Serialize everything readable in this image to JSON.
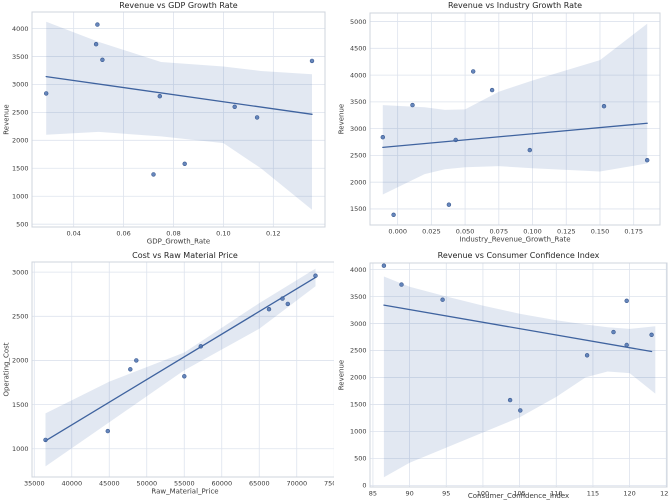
{
  "figure": {
    "background": "#ffffff",
    "colors": {
      "accent": "#4c72b0",
      "line": "#3f639f",
      "point_fill": "#4c72b0",
      "point_edge": "#39588f",
      "band_fill": "#4c72b0",
      "band_opacity": 0.16,
      "grid": "#dde3ed",
      "spine": "#cfd4dd",
      "tick_text": "#3b3b3b",
      "title_text": "#262626"
    }
  },
  "chart_data": [
    {
      "type": "scatter",
      "title": "Revenue vs GDP Growth Rate",
      "xlabel": "GDP_Growth_Rate",
      "ylabel": "Revenue",
      "legend": "none",
      "grid": true,
      "xlim": [
        0.0233,
        0.1407
      ],
      "ylim": [
        450,
        4295
      ],
      "xtick_values": [
        0.04,
        0.06,
        0.08,
        0.1,
        0.12
      ],
      "xtick_labels": [
        "0.04",
        "0.06",
        "0.08",
        "0.10",
        "0.12"
      ],
      "ytick_values": [
        500,
        1000,
        1500,
        2000,
        2500,
        3000,
        3500,
        4000
      ],
      "ytick_labels": [
        "500",
        "1000",
        "1500",
        "2000",
        "2500",
        "3000",
        "3500",
        "4000"
      ],
      "points": [
        [
          0.029,
          2840
        ],
        [
          0.0495,
          4070
        ],
        [
          0.049,
          3720
        ],
        [
          0.0515,
          3440
        ],
        [
          0.072,
          1390
        ],
        [
          0.0745,
          2790
        ],
        [
          0.0845,
          1580
        ],
        [
          0.1045,
          2600
        ],
        [
          0.1135,
          2410
        ],
        [
          0.1355,
          3420
        ]
      ],
      "regression_line": {
        "x": [
          0.029,
          0.1355
        ],
        "y": [
          3140,
          2465
        ]
      },
      "confidence_band": {
        "x": [
          0.029,
          0.05,
          0.075,
          0.1,
          0.115,
          0.1355
        ],
        "upper": [
          4120,
          3760,
          3400,
          3320,
          3240,
          3180
        ],
        "lower": [
          2100,
          2150,
          2070,
          1950,
          1500,
          760
        ]
      }
    },
    {
      "type": "scatter",
      "title": "Revenue vs Industry Growth Rate",
      "xlabel": "Industry_Revenue_Growth_Rate",
      "ylabel": "Revenue",
      "legend": "none",
      "grid": true,
      "xlim": [
        -0.0205,
        0.1945
      ],
      "ylim": [
        1200,
        5160
      ],
      "xtick_values": [
        0.0,
        0.025,
        0.05,
        0.075,
        0.1,
        0.125,
        0.15,
        0.175
      ],
      "xtick_labels": [
        "0.000",
        "0.025",
        "0.050",
        "0.075",
        "0.100",
        "0.125",
        "0.150",
        "0.175"
      ],
      "ytick_values": [
        1500,
        2000,
        2500,
        3000,
        3500,
        4000,
        4500,
        5000
      ],
      "ytick_labels": [
        "1500",
        "2000",
        "2500",
        "3000",
        "3500",
        "4000",
        "4500",
        "5000"
      ],
      "points": [
        [
          -0.011,
          2840
        ],
        [
          -0.003,
          1390
        ],
        [
          0.011,
          3440
        ],
        [
          0.038,
          1580
        ],
        [
          0.043,
          2790
        ],
        [
          0.056,
          4070
        ],
        [
          0.07,
          3720
        ],
        [
          0.098,
          2600
        ],
        [
          0.153,
          3420
        ],
        [
          0.185,
          2410
        ]
      ],
      "regression_line": {
        "x": [
          -0.011,
          0.185
        ],
        "y": [
          2650,
          3100
        ]
      },
      "confidence_band": {
        "x": [
          -0.011,
          0.02,
          0.035,
          0.05,
          0.075,
          0.1,
          0.125,
          0.15,
          0.185
        ],
        "upper": [
          3440,
          3400,
          3350,
          3360,
          3690,
          3900,
          4090,
          4280,
          4960
        ],
        "lower": [
          1770,
          2150,
          2240,
          2280,
          2300,
          2260,
          2230,
          2200,
          2350
        ]
      }
    },
    {
      "type": "scatter",
      "title": "Cost vs Raw Material Price",
      "xlabel": "Raw_Material_Price",
      "ylabel": "Operating_Cost",
      "legend": "none",
      "grid": true,
      "xlim": [
        34700,
        75500
      ],
      "ylim": [
        680,
        3115
      ],
      "xtick_values": [
        35000,
        40000,
        45000,
        50000,
        55000,
        60000,
        65000,
        70000,
        75000
      ],
      "xtick_labels": [
        "35000",
        "40000",
        "45000",
        "50000",
        "55000",
        "60000",
        "65000",
        "70000",
        "75000"
      ],
      "ytick_values": [
        1000,
        1500,
        2000,
        2500,
        3000
      ],
      "ytick_labels": [
        "1000",
        "1500",
        "2000",
        "2500",
        "3000"
      ],
      "points": [
        [
          36500,
          1100
        ],
        [
          44800,
          1200
        ],
        [
          47800,
          1900
        ],
        [
          48600,
          2000
        ],
        [
          55000,
          1820
        ],
        [
          57200,
          2160
        ],
        [
          66300,
          2580
        ],
        [
          68100,
          2700
        ],
        [
          68800,
          2640
        ],
        [
          72500,
          2960
        ]
      ],
      "regression_line": {
        "x": [
          36500,
          72500
        ],
        "y": [
          1090,
          2940
        ]
      },
      "confidence_band": {
        "x": [
          36500,
          45000,
          55000,
          65000,
          72500
        ],
        "upper": [
          1400,
          1760,
          2090,
          2650,
          3040
        ],
        "lower": [
          800,
          1300,
          1890,
          2360,
          2840
        ]
      }
    },
    {
      "type": "scatter",
      "title": "Revenue vs Consumer Confidence Index",
      "xlabel": "Consumer_Confidence_Index",
      "ylabel": "Revenue",
      "legend": "none",
      "grid": true,
      "xlim": [
        84.6,
        125.1
      ],
      "ylim": [
        -30,
        4120
      ],
      "xtick_values": [
        85,
        90,
        95,
        100,
        105,
        110,
        115,
        120,
        125
      ],
      "xtick_labels": [
        "85",
        "90",
        "95",
        "100",
        "105",
        "110",
        "115",
        "120",
        "125"
      ],
      "ytick_values": [
        0,
        500,
        1000,
        1500,
        2000,
        2500,
        3000,
        3500,
        4000
      ],
      "ytick_labels": [
        "0",
        "500",
        "1000",
        "1500",
        "2000",
        "2500",
        "3000",
        "3500",
        "4000"
      ],
      "points": [
        [
          86.5,
          4070
        ],
        [
          88.9,
          3720
        ],
        [
          94.5,
          3440
        ],
        [
          103.7,
          1580
        ],
        [
          105.1,
          1390
        ],
        [
          114.2,
          2410
        ],
        [
          117.8,
          2840
        ],
        [
          119.6,
          3420
        ],
        [
          119.6,
          2600
        ],
        [
          123.0,
          2790
        ]
      ],
      "regression_line": {
        "x": [
          86.5,
          123.0
        ],
        "y": [
          3340,
          2480
        ]
      },
      "confidence_band": {
        "x": [
          86.5,
          90,
          95,
          100,
          105,
          110,
          114,
          117,
          120,
          123.5
        ],
        "upper": [
          3870,
          3680,
          3500,
          3330,
          3180,
          3060,
          2980,
          2930,
          2900,
          2950
        ],
        "lower": [
          150,
          420,
          700,
          980,
          1260,
          1640,
          2000,
          2110,
          2080,
          1700
        ]
      }
    }
  ]
}
